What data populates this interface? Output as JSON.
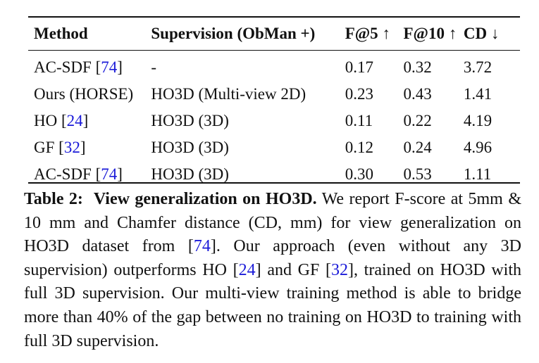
{
  "table": {
    "headers": [
      "Method",
      "Supervision (ObMan +)",
      "F@5 ↑",
      "F@10 ↑",
      "CD ↓"
    ],
    "rows": [
      {
        "method": "AC-SDF",
        "method_cite": "74",
        "supervision": "-",
        "f5": "0.17",
        "f10": "0.32",
        "cd": "3.72"
      },
      {
        "method": "Ours (HORSE)",
        "method_cite": "",
        "supervision": "HO3D (Multi-view 2D)",
        "f5": "0.23",
        "f10": "0.43",
        "cd": "1.41"
      },
      {
        "method": "HO",
        "method_cite": "24",
        "supervision": "HO3D (3D)",
        "f5": "0.11",
        "f10": "0.22",
        "cd": "4.19"
      },
      {
        "method": "GF",
        "method_cite": "32",
        "supervision": "HO3D (3D)",
        "f5": "0.12",
        "f10": "0.24",
        "cd": "4.96"
      },
      {
        "method": "AC-SDF",
        "method_cite": "74",
        "supervision": "HO3D (3D)",
        "f5": "0.30",
        "f10": "0.53",
        "cd": "1.11"
      }
    ]
  },
  "caption": {
    "label": "Table 2:",
    "title": "View generalization on HO3D.",
    "s1": "We report F-score at 5mm & 10 mm and Chamfer distance (CD, mm) for view generalization on HO3D dataset from",
    "cite_a": "74",
    "s2": ". Our approach (even without any 3D supervision) outperforms HO",
    "cite_b": "24",
    "s3": "and GF",
    "cite_c": "32",
    "s4": ", trained on HO3D with full 3D supervision. Our multi-view training method is able to bridge more than 40% of the gap between no training on HO3D to training with full 3D supervision."
  },
  "colors": {
    "citation": "#1a1ad8",
    "text": "#111111"
  }
}
